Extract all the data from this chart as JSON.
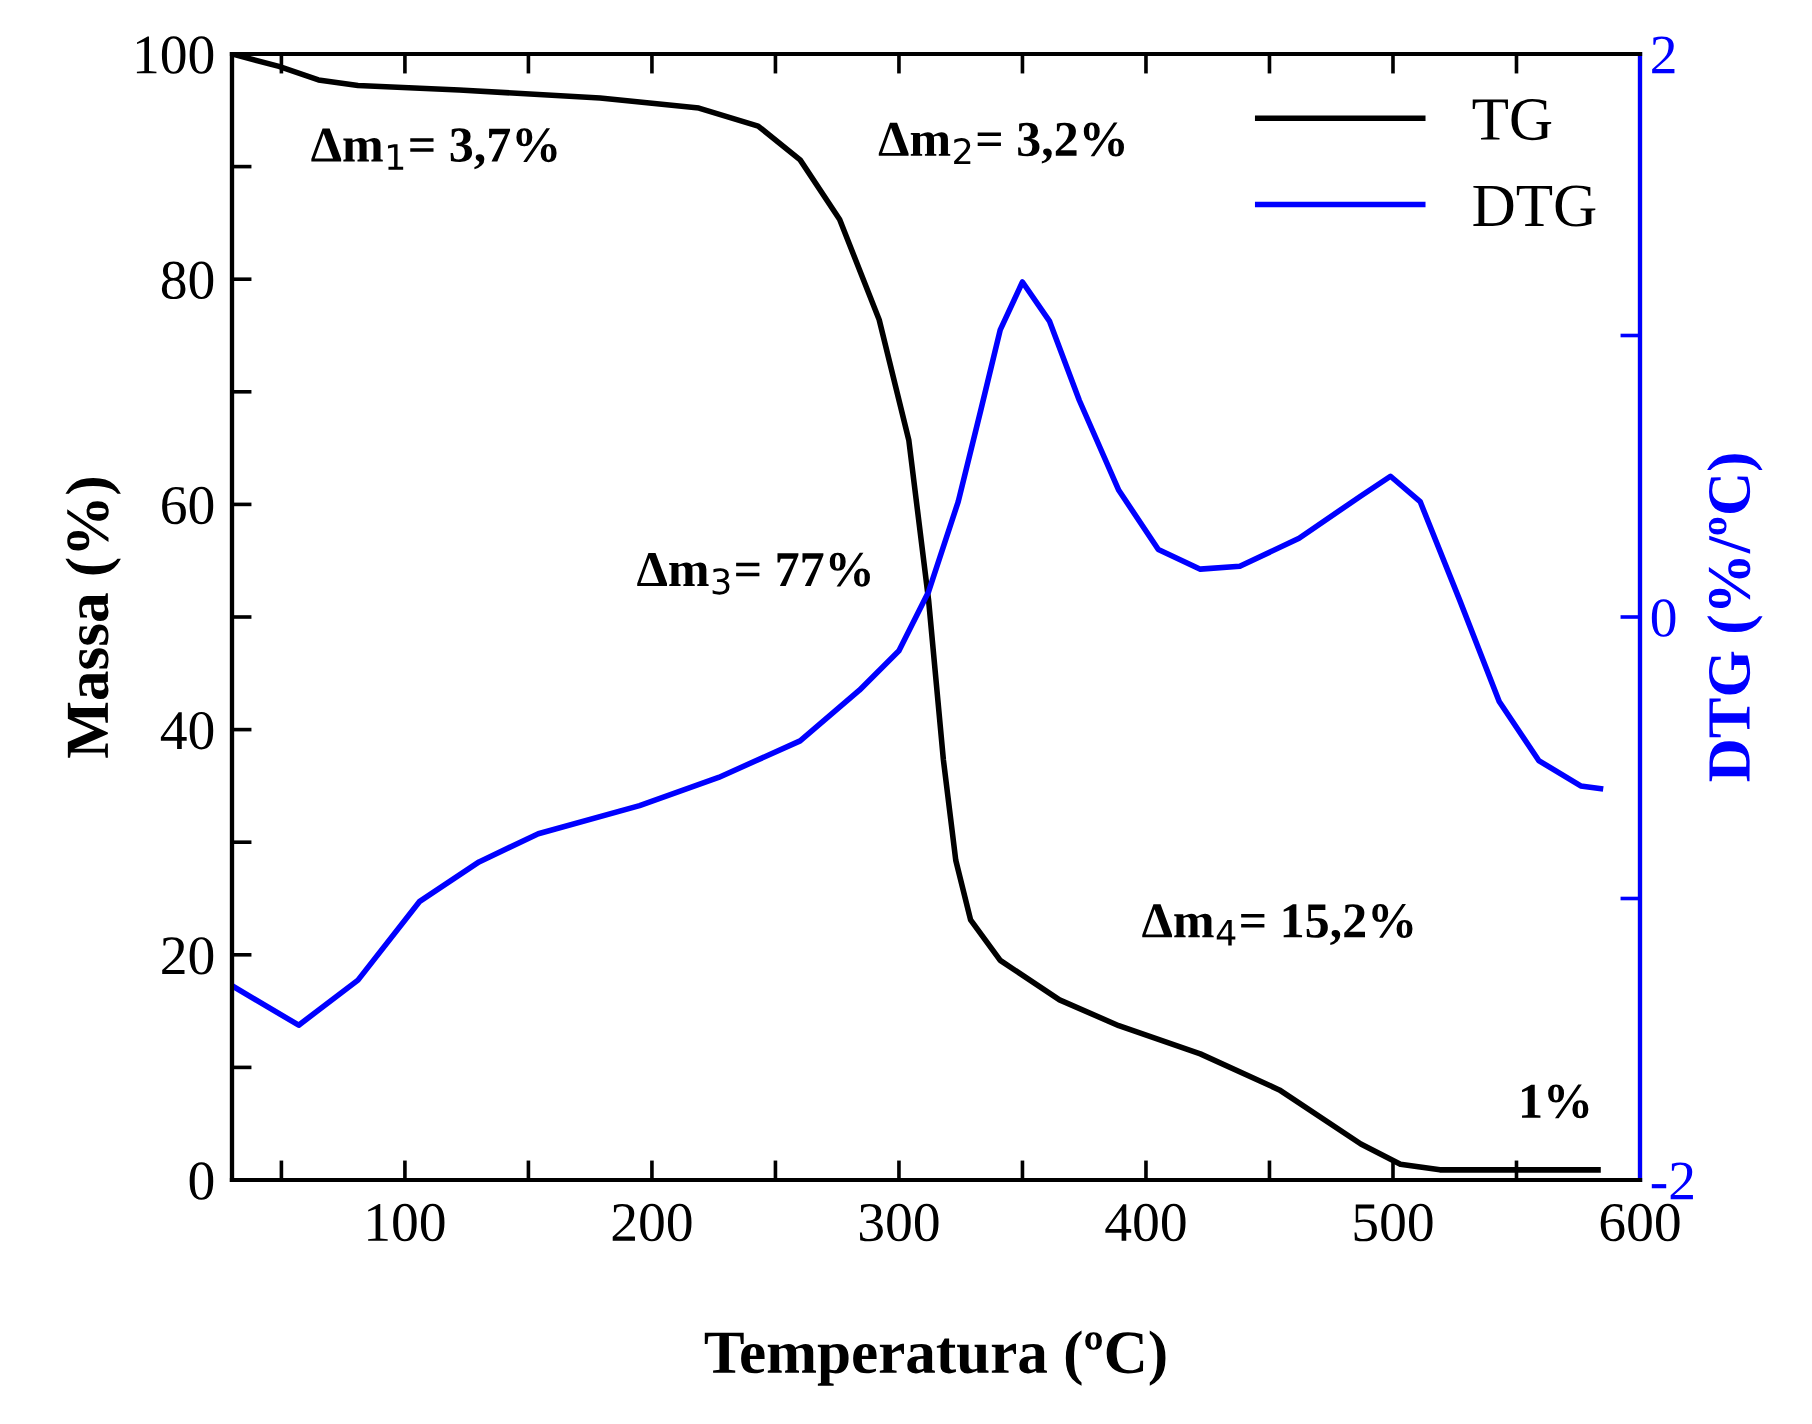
{
  "chart_data": {
    "type": "line",
    "xlabel": "Temperatura (ºC)",
    "ylabel": "Massa (%)",
    "y2label": "DTG (%/ºC)",
    "xlim": [
      30,
      600
    ],
    "ylim": [
      0,
      100
    ],
    "y2lim": [
      -2,
      2
    ],
    "xticks": [
      {
        "value": 50,
        "label": null
      },
      100,
      {
        "value": 150,
        "label": null
      },
      200,
      {
        "value": 250,
        "label": null
      },
      300,
      {
        "value": 350,
        "label": null
      },
      400,
      {
        "value": 450,
        "label": null
      },
      500,
      {
        "value": 550,
        "label": null
      },
      600
    ],
    "yticks": [
      0,
      {
        "value": 10,
        "label": null
      },
      20,
      {
        "value": 30,
        "label": null
      },
      40,
      {
        "value": 50,
        "label": null
      },
      60,
      {
        "value": 70,
        "label": null
      },
      80,
      {
        "value": 90,
        "label": null
      },
      100
    ],
    "y2ticks": [
      -2,
      {
        "value": -1,
        "label": null
      },
      0,
      {
        "value": 1,
        "label": null
      },
      2
    ],
    "legend": "top right",
    "grid": false,
    "series": [
      {
        "name": "TG",
        "color": "#000000",
        "x": [
          30,
          49,
          65,
          81,
          122,
          179,
          219,
          243,
          260,
          276,
          292,
          304,
          312,
          318,
          323,
          329,
          341,
          365,
          389,
          422,
          454,
          487,
          503,
          519,
          543,
          583
        ],
        "values": [
          100,
          98.9,
          97.7,
          97.2,
          96.8,
          96.1,
          95.2,
          93.6,
          90.6,
          85.3,
          76.4,
          65.7,
          51.5,
          37.3,
          28.4,
          23.1,
          19.5,
          16.0,
          13.7,
          11.2,
          8.0,
          3.2,
          1.4,
          0.9,
          0.9,
          0.9
        ]
      },
      {
        "name": "DTG",
        "color": "#0000ff",
        "axis": "y2",
        "x": [
          30,
          57,
          81,
          106,
          130,
          154,
          195,
          227,
          260,
          284,
          300,
          312,
          324,
          333,
          341,
          350,
          361,
          373,
          389,
          405,
          422,
          438,
          462,
          487,
          499,
          511,
          527,
          543,
          559,
          576,
          584
        ],
        "values": [
          -1.31,
          -1.45,
          -1.29,
          -1.01,
          -0.87,
          -0.77,
          -0.67,
          -0.57,
          -0.44,
          -0.26,
          -0.12,
          0.09,
          0.41,
          0.73,
          1.02,
          1.19,
          1.05,
          0.77,
          0.45,
          0.24,
          0.17,
          0.18,
          0.28,
          0.43,
          0.5,
          0.41,
          0.06,
          -0.3,
          -0.51,
          -0.6,
          -0.61
        ]
      }
    ],
    "annotations": [
      "Δm$_{1}$= 3,7%",
      "Δm$_{2}$= 3,2%",
      "Δm$_{3}$= 77%",
      "Δm$_{4}$= 15,2%",
      "1%"
    ]
  }
}
